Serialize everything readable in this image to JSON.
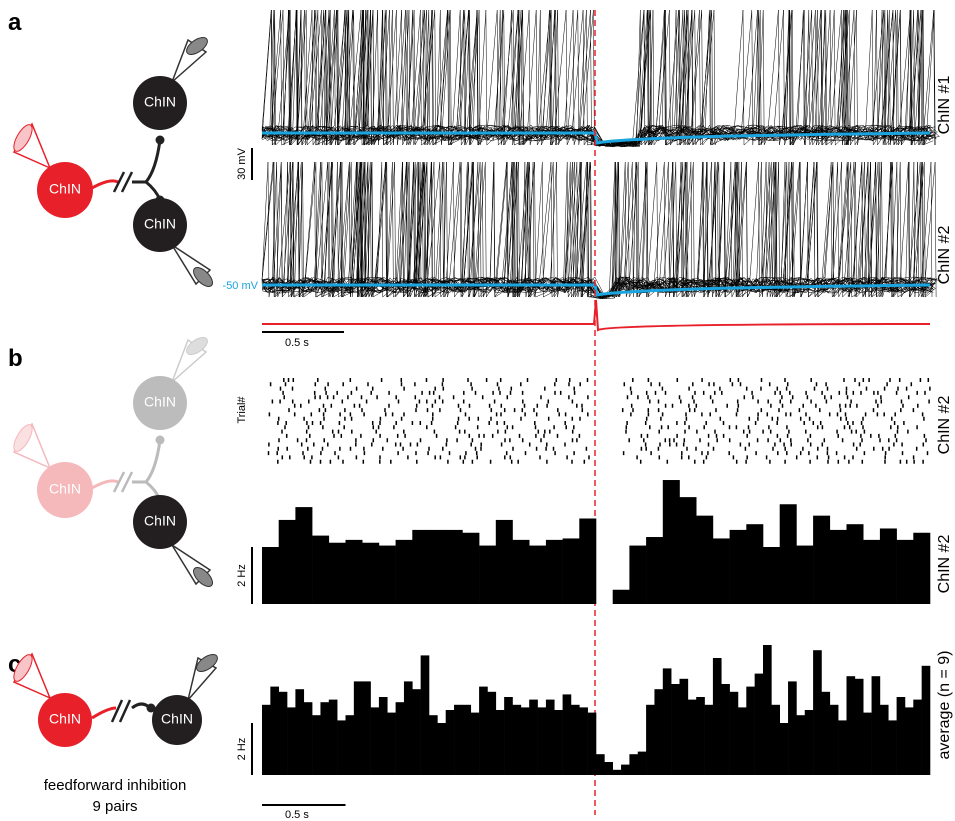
{
  "figure": {
    "panel_labels": [
      "a",
      "b",
      "c"
    ],
    "panel_a": {
      "cells": [
        "ChIN",
        "ChIN",
        "ChIN"
      ],
      "voltage_scale": "30 mV",
      "resting_potential": "-50 mV",
      "time_scale": "0.5 s",
      "trace_labels": [
        "ChIN #1",
        "ChIN #2"
      ]
    },
    "panel_b": {
      "cells": [
        "ChIN",
        "ChIN",
        "ChIN"
      ],
      "raster_ylabel": "Trial#",
      "raster_label": "ChIN #2"
    },
    "panel_c": {
      "cells": [
        "ChIN",
        "ChIN"
      ],
      "caption": [
        "feedforward inhibition",
        "9 pairs"
      ]
    }
  },
  "chart_data": [
    {
      "type": "histogram",
      "title": "ChIN #2",
      "color": "#000000",
      "xlim": [
        0,
        4.0
      ],
      "yscalebar": {
        "value": 2,
        "label": "2 Hz"
      },
      "bins": [
        0,
        0.1,
        0.2,
        0.3,
        0.4,
        0.5,
        0.6,
        0.7,
        0.8,
        0.9,
        1.0,
        1.1,
        1.2,
        1.3,
        1.4,
        1.5,
        1.6,
        1.7,
        1.8,
        1.9,
        2.0,
        2.1,
        2.2,
        2.3,
        2.4,
        2.5,
        2.6,
        2.7,
        2.8,
        2.9,
        3.0,
        3.1,
        3.2,
        3.3,
        3.4,
        3.5,
        3.6,
        3.7,
        3.8,
        3.9,
        4.0
      ],
      "values": [
        2.0,
        2.95,
        3.4,
        2.4,
        2.15,
        2.25,
        2.15,
        2.05,
        2.25,
        2.6,
        2.6,
        2.6,
        2.5,
        2.05,
        2.95,
        2.25,
        2.05,
        2.25,
        2.3,
        3.0,
        null,
        0.5,
        2.05,
        2.35,
        4.35,
        3.75,
        3.1,
        2.3,
        2.6,
        2.8,
        2.0,
        3.5,
        2.05,
        3.1,
        2.6,
        2.8,
        2.25,
        2.65,
        2.25,
        2.5
      ]
    },
    {
      "type": "histogram",
      "title": "average (n = 9)",
      "color": "#000000",
      "xlim": [
        0,
        4.0
      ],
      "yscalebar": {
        "value": 2,
        "label": "2 Hz"
      },
      "xscalebar": {
        "value": 0.5,
        "label": "0.5 s"
      },
      "bins": [
        0,
        0.05,
        0.1,
        0.15,
        0.2,
        0.25,
        0.3,
        0.35,
        0.4,
        0.45,
        0.5,
        0.55,
        0.6,
        0.65,
        0.7,
        0.75,
        0.8,
        0.85,
        0.9,
        0.95,
        1.0,
        1.05,
        1.1,
        1.15,
        1.2,
        1.25,
        1.3,
        1.35,
        1.4,
        1.45,
        1.5,
        1.55,
        1.6,
        1.65,
        1.7,
        1.75,
        1.8,
        1.85,
        1.9,
        1.95,
        2.0,
        2.05,
        2.1,
        2.15,
        2.2,
        2.25,
        2.3,
        2.35,
        2.4,
        2.45,
        2.5,
        2.55,
        2.6,
        2.65,
        2.7,
        2.75,
        2.8,
        2.85,
        2.9,
        2.95,
        3.0,
        3.05,
        3.1,
        3.15,
        3.2,
        3.25,
        3.3,
        3.35,
        3.4,
        3.45,
        3.5,
        3.55,
        3.6,
        3.65,
        3.7,
        3.75,
        3.8,
        3.85,
        3.9,
        3.95,
        4.0
      ],
      "values": [
        2.7,
        3.4,
        3.2,
        2.6,
        3.3,
        2.8,
        2.3,
        2.8,
        2.9,
        2.1,
        2.3,
        3.6,
        3.6,
        2.6,
        3.0,
        2.4,
        2.8,
        3.6,
        3.3,
        4.6,
        2.3,
        2.0,
        2.5,
        2.7,
        2.7,
        2.4,
        3.4,
        3.2,
        2.5,
        3.0,
        2.7,
        2.6,
        2.9,
        2.6,
        2.9,
        2.5,
        3.1,
        2.7,
        2.6,
        2.4,
        0.8,
        0.5,
        0.2,
        0.4,
        0.8,
        0.9,
        2.7,
        3.3,
        4.1,
        3.5,
        3.7,
        2.9,
        3.0,
        2.7,
        4.5,
        3.5,
        3.2,
        2.6,
        3.4,
        3.9,
        5.0,
        2.7,
        2.0,
        3.6,
        2.3,
        2.5,
        4.8,
        3.2,
        2.7,
        2.1,
        3.8,
        3.7,
        2.4,
        3.8,
        2.7,
        2.1,
        3.0,
        2.6,
        2.9,
        4.2
      ]
    }
  ]
}
